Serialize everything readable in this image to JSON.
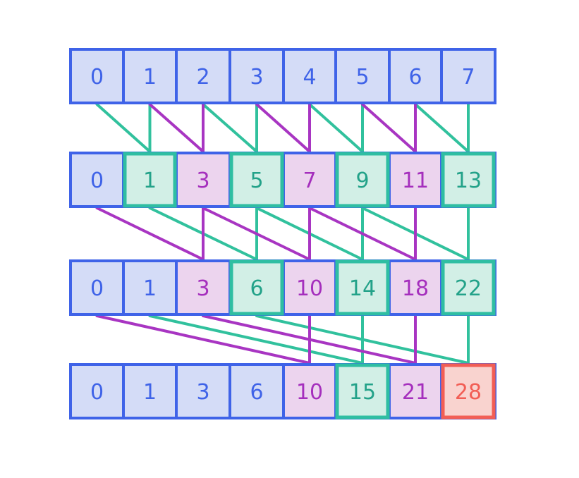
{
  "colors": {
    "border": "#3f63e8",
    "blue_fill": "#d4dcf7",
    "pink_fill": "#ecd4ee",
    "teal_fill": "#d2efe6",
    "teal_border": "#2fbea2",
    "red_fill": "#f9d3cf",
    "red_border": "#f25e55",
    "blue_text": "#3f63e8",
    "purple_text": "#a52fbd",
    "teal_text": "#23a289",
    "red_text": "#f25e55",
    "teal_line": "#31c19d",
    "purple_line": "#a835c2"
  },
  "rows": [
    {
      "cells": [
        {
          "value": "0",
          "style": "blue"
        },
        {
          "value": "1",
          "style": "blue"
        },
        {
          "value": "2",
          "style": "blue"
        },
        {
          "value": "3",
          "style": "blue"
        },
        {
          "value": "4",
          "style": "blue"
        },
        {
          "value": "5",
          "style": "blue"
        },
        {
          "value": "6",
          "style": "blue"
        },
        {
          "value": "7",
          "style": "blue"
        }
      ]
    },
    {
      "cells": [
        {
          "value": "0",
          "style": "blue"
        },
        {
          "value": "1",
          "style": "teal"
        },
        {
          "value": "3",
          "style": "pink"
        },
        {
          "value": "5",
          "style": "teal"
        },
        {
          "value": "7",
          "style": "pink"
        },
        {
          "value": "9",
          "style": "teal"
        },
        {
          "value": "11",
          "style": "pink"
        },
        {
          "value": "13",
          "style": "teal"
        }
      ]
    },
    {
      "cells": [
        {
          "value": "0",
          "style": "blue"
        },
        {
          "value": "1",
          "style": "blue"
        },
        {
          "value": "3",
          "style": "pink"
        },
        {
          "value": "6",
          "style": "teal"
        },
        {
          "value": "10",
          "style": "pink"
        },
        {
          "value": "14",
          "style": "teal"
        },
        {
          "value": "18",
          "style": "pink"
        },
        {
          "value": "22",
          "style": "teal"
        }
      ]
    },
    {
      "cells": [
        {
          "value": "0",
          "style": "blue"
        },
        {
          "value": "1",
          "style": "blue"
        },
        {
          "value": "3",
          "style": "blue"
        },
        {
          "value": "6",
          "style": "blue"
        },
        {
          "value": "10",
          "style": "pink"
        },
        {
          "value": "15",
          "style": "teal"
        },
        {
          "value": "21",
          "style": "pink"
        },
        {
          "value": "28",
          "style": "red"
        }
      ]
    }
  ],
  "connections": [
    {
      "from_row": 0,
      "to_row": 1,
      "teal_pairs": [
        [
          0,
          1
        ],
        [
          1,
          1
        ],
        [
          2,
          3
        ],
        [
          3,
          3
        ],
        [
          4,
          5
        ],
        [
          5,
          5
        ],
        [
          6,
          7
        ],
        [
          7,
          7
        ]
      ],
      "purple_pairs": [
        [
          1,
          2
        ],
        [
          2,
          2
        ],
        [
          3,
          4
        ],
        [
          4,
          4
        ],
        [
          5,
          6
        ],
        [
          6,
          6
        ]
      ]
    },
    {
      "from_row": 1,
      "to_row": 2,
      "teal_pairs": [
        [
          1,
          3
        ],
        [
          3,
          3
        ],
        [
          3,
          5
        ],
        [
          5,
          5
        ],
        [
          5,
          7
        ],
        [
          7,
          7
        ]
      ],
      "purple_pairs": [
        [
          0,
          2
        ],
        [
          2,
          2
        ],
        [
          2,
          4
        ],
        [
          4,
          4
        ],
        [
          4,
          6
        ],
        [
          6,
          6
        ]
      ]
    },
    {
      "from_row": 2,
      "to_row": 3,
      "teal_pairs": [
        [
          1,
          5
        ],
        [
          5,
          5
        ],
        [
          3,
          7
        ],
        [
          7,
          7
        ]
      ],
      "purple_pairs": [
        [
          0,
          4
        ],
        [
          4,
          4
        ],
        [
          2,
          6
        ],
        [
          6,
          6
        ]
      ]
    }
  ]
}
